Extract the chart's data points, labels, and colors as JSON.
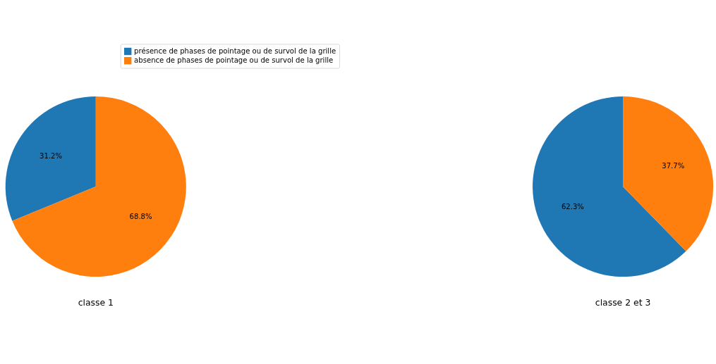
{
  "chart_data": [
    {
      "type": "pie",
      "title": "classe 1",
      "categories": [
        "présence de phases de pointage ou de survol de la grille",
        "absence de phases de pointage ou de survol de la grille"
      ],
      "values": [
        31.2,
        68.8
      ],
      "colors": [
        "#1f77b4",
        "#ff7f0e"
      ],
      "value_labels": [
        "31.2%",
        "68.8%"
      ],
      "legend": "top"
    },
    {
      "type": "pie",
      "title": "classe 2 et 3",
      "categories": [
        null,
        null
      ],
      "values": [
        62.3,
        37.7
      ],
      "colors": [
        "#1f77b4",
        "#ff7f0e"
      ],
      "value_labels": [
        "62.3%",
        "37.7%"
      ]
    }
  ]
}
